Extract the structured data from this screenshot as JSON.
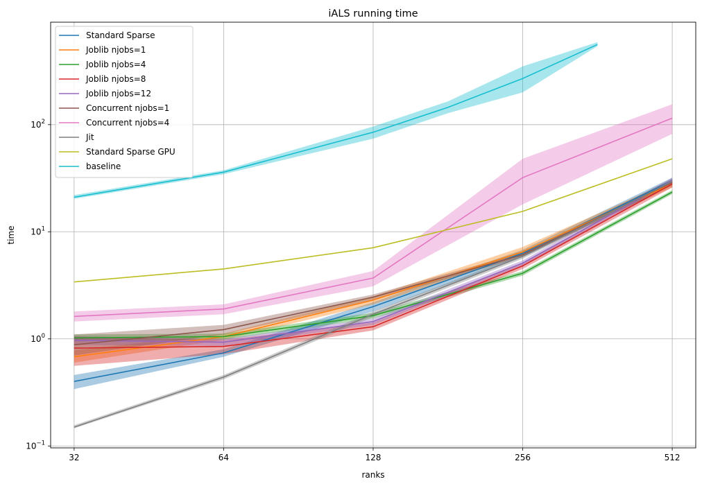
{
  "chart_data": {
    "type": "line",
    "title": "iALS running time",
    "xlabel": "ranks",
    "ylabel": "time",
    "x_scale": "log2",
    "y_scale": "log10",
    "x_ticks": [
      32,
      64,
      128,
      256,
      512
    ],
    "x_tick_labels": [
      "32",
      "64",
      "128",
      "256",
      "512"
    ],
    "y_ticks": [
      0.1,
      1,
      10,
      100
    ],
    "y_tick_labels": [
      {
        "base": "10",
        "exp": "−1"
      },
      {
        "base": "10",
        "exp": "0"
      },
      {
        "base": "10",
        "exp": "1"
      },
      {
        "base": "10",
        "exp": "2"
      }
    ],
    "xlim": [
      28.7,
      571
    ],
    "ylim": [
      0.096,
      905
    ],
    "grid": true,
    "legend_position": "top-left",
    "series": [
      {
        "name": "Standard Sparse",
        "color": "#1f77b4",
        "x": [
          32,
          64,
          128,
          256,
          512
        ],
        "y": [
          0.4,
          0.74,
          2.0,
          6.3,
          30
        ],
        "lower": [
          0.34,
          0.68,
          1.8,
          5.8,
          28
        ],
        "upper": [
          0.46,
          0.8,
          2.2,
          6.8,
          32
        ]
      },
      {
        "name": "Joblib njobs=1",
        "color": "#ff7f0e",
        "x": [
          32,
          64,
          128,
          256,
          512
        ],
        "y": [
          0.68,
          1.05,
          2.3,
          6.5,
          28
        ],
        "lower": [
          0.6,
          0.98,
          2.1,
          6.0,
          26
        ],
        "upper": [
          0.78,
          1.12,
          2.5,
          7.2,
          30
        ]
      },
      {
        "name": "Joblib njobs=4",
        "color": "#2ca02c",
        "x": [
          32,
          64,
          128,
          256,
          512
        ],
        "y": [
          1.02,
          1.05,
          1.65,
          4.1,
          23.5
        ],
        "lower": [
          0.95,
          0.98,
          1.55,
          3.9,
          22.5
        ],
        "upper": [
          1.1,
          1.12,
          1.75,
          4.3,
          24.5
        ]
      },
      {
        "name": "Joblib njobs=8",
        "color": "#d62728",
        "x": [
          32,
          64,
          128,
          256,
          512
        ],
        "y": [
          0.82,
          0.85,
          1.3,
          4.8,
          28
        ],
        "lower": [
          0.56,
          0.72,
          1.2,
          4.5,
          26
        ],
        "upper": [
          1.05,
          0.98,
          1.42,
          5.1,
          30
        ]
      },
      {
        "name": "Joblib njobs=12",
        "color": "#9467bd",
        "x": [
          32,
          64,
          128,
          256,
          512
        ],
        "y": [
          0.97,
          0.93,
          1.45,
          5.1,
          30
        ],
        "lower": [
          0.88,
          0.86,
          1.35,
          4.8,
          28
        ],
        "upper": [
          1.06,
          1.0,
          1.55,
          5.4,
          32
        ]
      },
      {
        "name": "Concurrent njobs=1",
        "color": "#8c564b",
        "x": [
          32,
          64,
          128,
          256,
          512
        ],
        "y": [
          0.88,
          1.22,
          2.45,
          6.1,
          29
        ],
        "lower": [
          0.7,
          1.1,
          2.3,
          5.8,
          27
        ],
        "upper": [
          1.1,
          1.35,
          2.6,
          6.4,
          31
        ]
      },
      {
        "name": "Concurrent njobs=4",
        "color": "#e377c2",
        "x": [
          32,
          64,
          128,
          256,
          512
        ],
        "y": [
          1.62,
          1.9,
          3.7,
          32,
          115
        ],
        "lower": [
          1.45,
          1.7,
          3.1,
          18,
          82
        ],
        "upper": [
          1.8,
          2.1,
          4.3,
          48,
          155
        ]
      },
      {
        "name": "Jit",
        "color": "#7f7f7f",
        "x": [
          32,
          64,
          128,
          256,
          512
        ],
        "y": [
          0.15,
          0.44,
          1.7,
          5.9,
          29.5
        ],
        "lower": [
          0.146,
          0.42,
          1.6,
          5.6,
          28
        ],
        "upper": [
          0.156,
          0.46,
          1.8,
          6.2,
          31
        ]
      },
      {
        "name": "Standard Sparse GPU",
        "color": "#bcbd22",
        "x": [
          32,
          64,
          128,
          256,
          512
        ],
        "y": [
          3.4,
          4.5,
          7.1,
          15.5,
          48
        ],
        "lower": [
          3.4,
          4.5,
          7.1,
          15.5,
          48
        ],
        "upper": [
          3.4,
          4.5,
          7.1,
          15.5,
          48
        ]
      },
      {
        "name": "baseline",
        "color": "#17becf",
        "x": [
          32,
          64,
          128,
          181,
          256,
          362
        ],
        "y": [
          21,
          36,
          85,
          145,
          270,
          560
        ],
        "lower": [
          20.3,
          34.5,
          74,
          128,
          200,
          540
        ],
        "upper": [
          22,
          37.5,
          96,
          165,
          350,
          590
        ]
      }
    ]
  }
}
